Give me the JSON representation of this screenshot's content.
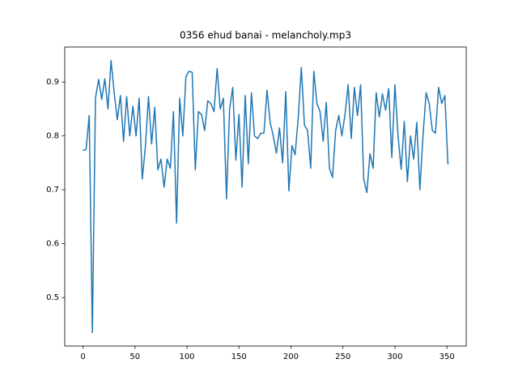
{
  "chart_data": {
    "type": "line",
    "title": "0356 ehud banai - melancholy.mp3",
    "color": "#1f77b4",
    "x": [
      0,
      3,
      6,
      9,
      12,
      15,
      18,
      21,
      24,
      27,
      30,
      33,
      36,
      39,
      42,
      45,
      48,
      51,
      54,
      57,
      60,
      63,
      66,
      69,
      72,
      75,
      78,
      81,
      84,
      87,
      90,
      93,
      96,
      99,
      102,
      105,
      108,
      111,
      114,
      117,
      120,
      123,
      126,
      129,
      132,
      135,
      138,
      141,
      144,
      147,
      150,
      153,
      156,
      159,
      162,
      165,
      168,
      171,
      174,
      177,
      180,
      183,
      186,
      189,
      192,
      195,
      198,
      201,
      204,
      207,
      210,
      213,
      216,
      219,
      222,
      225,
      228,
      231,
      234,
      237,
      240,
      243,
      246,
      249,
      252,
      255,
      258,
      261,
      264,
      267,
      270,
      273,
      276,
      279,
      282,
      285,
      288,
      291,
      294,
      297,
      300,
      303,
      306,
      309,
      312,
      315,
      318,
      321,
      324,
      327,
      330,
      333,
      336,
      339,
      342,
      345,
      348,
      351
    ],
    "values": [
      0.773,
      0.775,
      0.838,
      0.435,
      0.87,
      0.905,
      0.868,
      0.906,
      0.85,
      0.94,
      0.88,
      0.83,
      0.875,
      0.79,
      0.873,
      0.8,
      0.855,
      0.8,
      0.87,
      0.72,
      0.78,
      0.873,
      0.785,
      0.853,
      0.737,
      0.757,
      0.705,
      0.757,
      0.74,
      0.845,
      0.638,
      0.87,
      0.8,
      0.91,
      0.92,
      0.918,
      0.737,
      0.845,
      0.84,
      0.81,
      0.865,
      0.86,
      0.845,
      0.925,
      0.85,
      0.87,
      0.683,
      0.85,
      0.89,
      0.755,
      0.84,
      0.705,
      0.875,
      0.748,
      0.88,
      0.8,
      0.795,
      0.805,
      0.805,
      0.885,
      0.825,
      0.8,
      0.768,
      0.815,
      0.75,
      0.882,
      0.698,
      0.782,
      0.765,
      0.833,
      0.927,
      0.82,
      0.81,
      0.74,
      0.92,
      0.86,
      0.845,
      0.79,
      0.862,
      0.74,
      0.723,
      0.81,
      0.838,
      0.8,
      0.84,
      0.895,
      0.795,
      0.89,
      0.838,
      0.895,
      0.72,
      0.695,
      0.767,
      0.74,
      0.88,
      0.835,
      0.878,
      0.848,
      0.888,
      0.76,
      0.895,
      0.8,
      0.738,
      0.827,
      0.715,
      0.8,
      0.757,
      0.825,
      0.7,
      0.8,
      0.88,
      0.86,
      0.81,
      0.805,
      0.89,
      0.86,
      0.875,
      0.747
    ],
    "xlim": [
      -17.55,
      368.55
    ],
    "ylim": [
      0.41,
      0.965
    ],
    "xticks": [
      0,
      50,
      100,
      150,
      200,
      250,
      300,
      350
    ],
    "yticks": [
      0.5,
      0.6,
      0.7,
      0.8,
      0.9
    ]
  }
}
